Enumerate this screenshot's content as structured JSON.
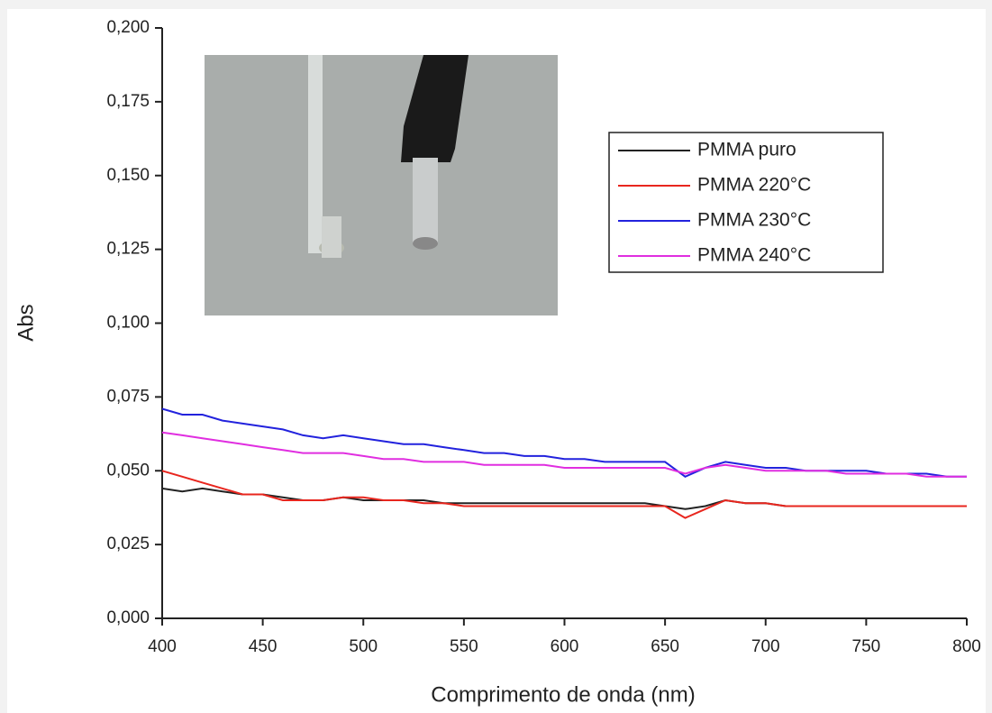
{
  "chart_data": {
    "type": "line",
    "x_label": "Comprimento de onda (nm)",
    "y_label": "Abs",
    "xlim": [
      400,
      800
    ],
    "xticks": [
      400,
      450,
      500,
      550,
      600,
      650,
      700,
      750,
      800
    ],
    "ylim": [
      0,
      0.2
    ],
    "yticks": [
      {
        "value": 0,
        "label": "0,000"
      },
      {
        "value": 0.025,
        "label": "0,025"
      },
      {
        "value": 0.05,
        "label": "0,050"
      },
      {
        "value": 0.075,
        "label": "0,075"
      },
      {
        "value": 0.1,
        "label": "0,100"
      },
      {
        "value": 0.125,
        "label": "0,125"
      },
      {
        "value": 0.15,
        "label": "0,150"
      },
      {
        "value": 0.175,
        "label": "0,175"
      },
      {
        "value": 0.2,
        "label": "0,200"
      }
    ],
    "legend": "upper right",
    "x": [
      400,
      410,
      420,
      430,
      440,
      450,
      460,
      470,
      480,
      490,
      500,
      510,
      520,
      530,
      540,
      550,
      560,
      570,
      580,
      590,
      600,
      610,
      620,
      630,
      640,
      650,
      660,
      670,
      680,
      690,
      700,
      710,
      720,
      730,
      740,
      750,
      760,
      770,
      780,
      790,
      800
    ],
    "series": [
      {
        "name": "PMMA puro",
        "color": "#222222",
        "values": [
          0.044,
          0.043,
          0.044,
          0.043,
          0.042,
          0.042,
          0.041,
          0.04,
          0.04,
          0.041,
          0.04,
          0.04,
          0.04,
          0.04,
          0.039,
          0.039,
          0.039,
          0.039,
          0.039,
          0.039,
          0.039,
          0.039,
          0.039,
          0.039,
          0.039,
          0.038,
          0.037,
          0.038,
          0.04,
          0.039,
          0.039,
          0.038,
          0.038,
          0.038,
          0.038,
          0.038,
          0.038,
          0.038,
          0.038,
          0.038,
          0.038
        ]
      },
      {
        "name": "PMMA 220°C",
        "color": "#e8261e",
        "values": [
          0.05,
          0.048,
          0.046,
          0.044,
          0.042,
          0.042,
          0.04,
          0.04,
          0.04,
          0.041,
          0.041,
          0.04,
          0.04,
          0.039,
          0.039,
          0.038,
          0.038,
          0.038,
          0.038,
          0.038,
          0.038,
          0.038,
          0.038,
          0.038,
          0.038,
          0.038,
          0.034,
          0.037,
          0.04,
          0.039,
          0.039,
          0.038,
          0.038,
          0.038,
          0.038,
          0.038,
          0.038,
          0.038,
          0.038,
          0.038,
          0.038
        ]
      },
      {
        "name": "PMMA 230°C",
        "color": "#2222dd",
        "values": [
          0.071,
          0.069,
          0.069,
          0.067,
          0.066,
          0.065,
          0.064,
          0.062,
          0.061,
          0.062,
          0.061,
          0.06,
          0.059,
          0.059,
          0.058,
          0.057,
          0.056,
          0.056,
          0.055,
          0.055,
          0.054,
          0.054,
          0.053,
          0.053,
          0.053,
          0.053,
          0.048,
          0.051,
          0.053,
          0.052,
          0.051,
          0.051,
          0.05,
          0.05,
          0.05,
          0.05,
          0.049,
          0.049,
          0.049,
          0.048,
          0.048
        ]
      },
      {
        "name": "PMMA 240°C",
        "color": "#e02ee0",
        "values": [
          0.063,
          0.062,
          0.061,
          0.06,
          0.059,
          0.058,
          0.057,
          0.056,
          0.056,
          0.056,
          0.055,
          0.054,
          0.054,
          0.053,
          0.053,
          0.053,
          0.052,
          0.052,
          0.052,
          0.052,
          0.051,
          0.051,
          0.051,
          0.051,
          0.051,
          0.051,
          0.049,
          0.051,
          0.052,
          0.051,
          0.05,
          0.05,
          0.05,
          0.05,
          0.049,
          0.049,
          0.049,
          0.049,
          0.048,
          0.048,
          0.048
        ]
      }
    ]
  }
}
